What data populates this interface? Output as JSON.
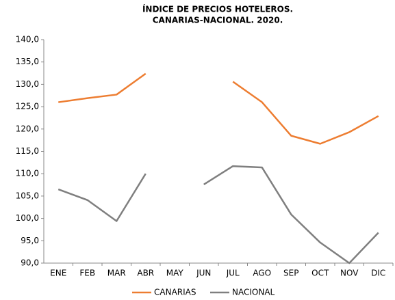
{
  "chart_data": {
    "type": "line",
    "title": [
      "ÍNDICE DE PRECIOS HOTELEROS.",
      "CANARIAS-NACIONAL. 2020."
    ],
    "categories": [
      "ENE",
      "FEB",
      "MAR",
      "ABR",
      "MAY",
      "JUN",
      "JUL",
      "AGO",
      "SEP",
      "OCT",
      "NOV",
      "DIC"
    ],
    "series": [
      {
        "name": "CANARIAS",
        "color": "#ed7d31",
        "values": [
          126.0,
          126.9,
          127.7,
          132.4,
          null,
          null,
          130.6,
          126.0,
          118.5,
          116.7,
          119.3,
          122.9
        ]
      },
      {
        "name": "NACIONAL",
        "color": "#7f7f7f",
        "values": [
          106.5,
          104.1,
          99.4,
          110.0,
          null,
          107.6,
          111.7,
          111.4,
          100.9,
          94.6,
          90.0,
          96.8
        ]
      }
    ],
    "ylim": [
      90,
      140
    ],
    "yticks": [
      {
        "value": 90,
        "label": "90,0"
      },
      {
        "value": 95,
        "label": "95,0"
      },
      {
        "value": 100,
        "label": "100,0"
      },
      {
        "value": 105,
        "label": "105,0"
      },
      {
        "value": 110,
        "label": "110,0"
      },
      {
        "value": 115,
        "label": "115,0"
      },
      {
        "value": 120,
        "label": "120,0"
      },
      {
        "value": 125,
        "label": "125,0"
      },
      {
        "value": 130,
        "label": "130,0"
      },
      {
        "value": 135,
        "label": "135,0"
      },
      {
        "value": 140,
        "label": "140,0"
      }
    ],
    "grid": false,
    "legend": "bottom"
  }
}
